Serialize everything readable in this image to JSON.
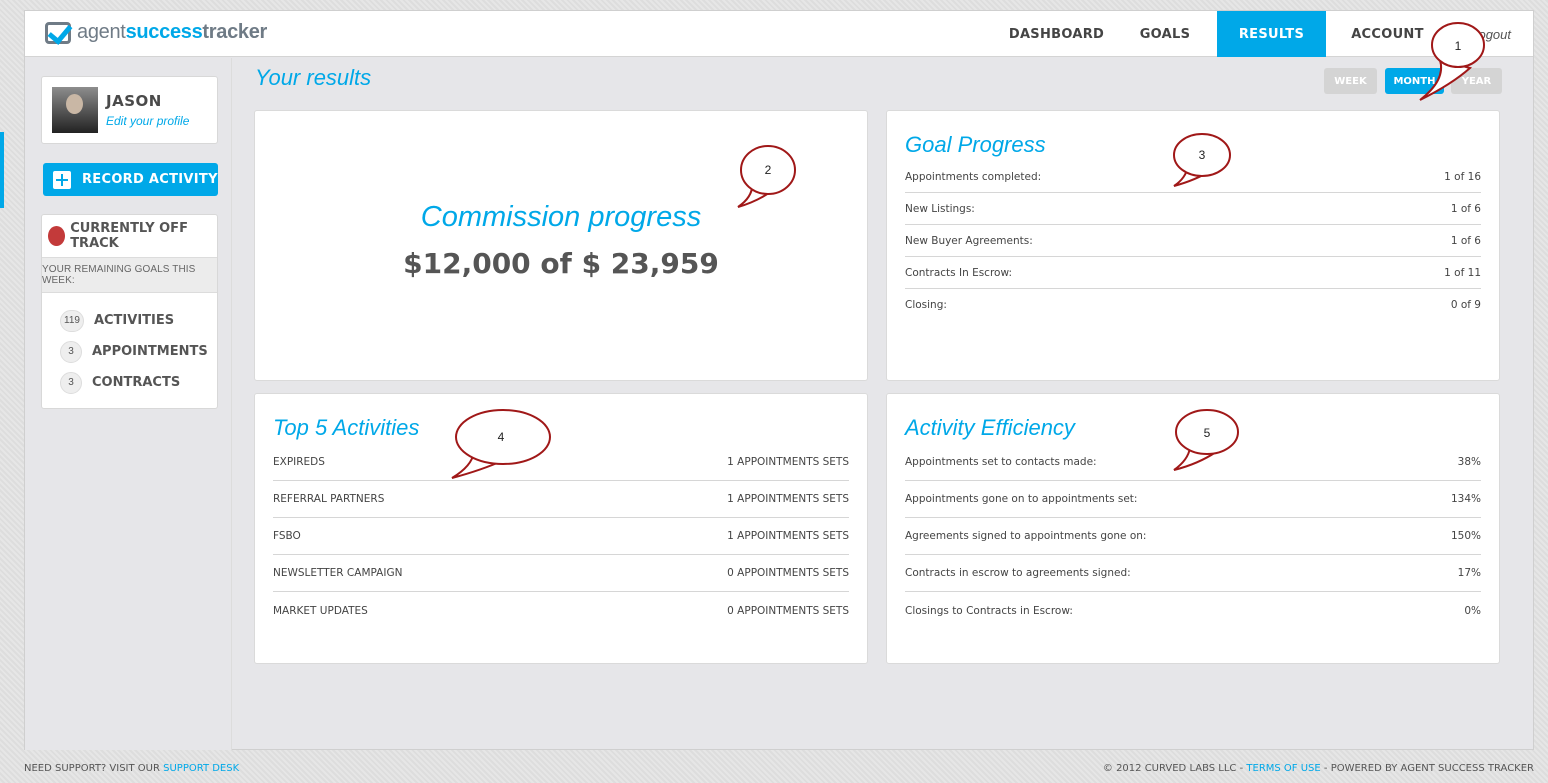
{
  "brand": {
    "part1": "agent",
    "part2": "success",
    "part3": "tracker"
  },
  "nav": {
    "items": [
      {
        "label": "DASHBOARD"
      },
      {
        "label": "GOALS"
      },
      {
        "label": "RESULTS"
      },
      {
        "label": "ACCOUNT"
      }
    ],
    "active": "RESULTS",
    "logout": "Logout"
  },
  "profile": {
    "name": "JASON",
    "edit_link": "Edit your profile"
  },
  "sidebar": {
    "record_button": "RECORD ACTIVITY",
    "status": "CURRENTLY OFF TRACK",
    "status_color": "#c33a3a",
    "remaining_heading": "YOUR REMAINING GOALS THIS WEEK:",
    "goals": [
      {
        "count": "119",
        "label": "ACTIVITIES"
      },
      {
        "count": "3",
        "label": "APPOINTMENTS"
      },
      {
        "count": "3",
        "label": "CONTRACTS"
      }
    ]
  },
  "page": {
    "title": "Your results"
  },
  "period": {
    "options": [
      "WEEK",
      "MONTH",
      "YEAR"
    ],
    "selected": "MONTH"
  },
  "commission": {
    "title": "Commission progress",
    "amount": "$12,000 of $ 23,959"
  },
  "goal_progress": {
    "title": "Goal Progress",
    "rows": [
      {
        "label": "Appointments completed:",
        "value": "1 of 16"
      },
      {
        "label": "New Listings:",
        "value": "1 of 6"
      },
      {
        "label": "New Buyer Agreements:",
        "value": "1 of 6"
      },
      {
        "label": "Contracts In Escrow:",
        "value": "1 of 11"
      },
      {
        "label": "Closing:",
        "value": "0 of 9"
      }
    ]
  },
  "top_activities": {
    "title": "Top 5 Activities",
    "rows": [
      {
        "label": "EXPIREDS",
        "value": "1 APPOINTMENTS SETS"
      },
      {
        "label": "REFERRAL PARTNERS",
        "value": "1 APPOINTMENTS SETS"
      },
      {
        "label": "FSBO",
        "value": "1 APPOINTMENTS SETS"
      },
      {
        "label": "NEWSLETTER CAMPAIGN",
        "value": "0 APPOINTMENTS SETS"
      },
      {
        "label": "MARKET UPDATES",
        "value": "0 APPOINTMENTS SETS"
      }
    ]
  },
  "efficiency": {
    "title": "Activity Efficiency",
    "rows": [
      {
        "label": "Appointments set to contacts made:",
        "value": "38%"
      },
      {
        "label": "Appointments gone on to appointments set:",
        "value": "134%"
      },
      {
        "label": "Agreements signed to appointments gone on:",
        "value": "150%"
      },
      {
        "label": "Contracts in escrow to agreements signed:",
        "value": "17%"
      },
      {
        "label": "Closings to Contracts in Escrow:",
        "value": "0%"
      }
    ]
  },
  "callouts": [
    "1",
    "2",
    "3",
    "4",
    "5"
  ],
  "footer": {
    "support_prefix": "NEED SUPPORT? VISIT OUR",
    "support_link": "SUPPORT DESK",
    "copyright": "© 2012 CURVED LABS LLC -",
    "terms_link": "TERMS OF USE",
    "powered": "- POWERED BY AGENT SUCCESS TRACKER"
  },
  "colors": {
    "accent": "#00a8e8",
    "callout_border": "#a01818"
  }
}
